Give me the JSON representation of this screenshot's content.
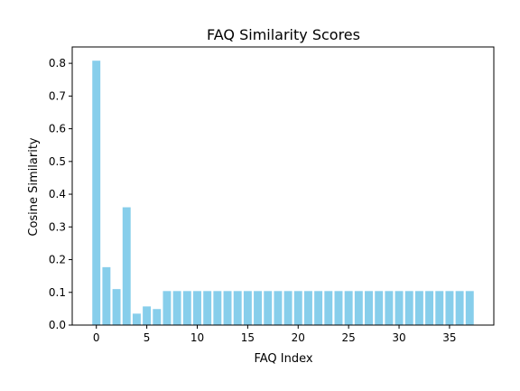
{
  "chart_data": {
    "type": "bar",
    "title": "FAQ Similarity Scores",
    "xlabel": "FAQ Index",
    "ylabel": "Cosine Similarity",
    "x": [
      0,
      1,
      2,
      3,
      4,
      5,
      6,
      7,
      8,
      9,
      10,
      11,
      12,
      13,
      14,
      15,
      16,
      17,
      18,
      19,
      20,
      21,
      22,
      23,
      24,
      25,
      26,
      27,
      28,
      29,
      30,
      31,
      32,
      33,
      34,
      35,
      36,
      37
    ],
    "values": [
      0.808,
      0.177,
      0.11,
      0.36,
      0.035,
      0.057,
      0.049,
      0.104,
      0.104,
      0.104,
      0.104,
      0.104,
      0.104,
      0.104,
      0.104,
      0.104,
      0.104,
      0.104,
      0.104,
      0.104,
      0.104,
      0.104,
      0.104,
      0.104,
      0.104,
      0.104,
      0.104,
      0.104,
      0.104,
      0.104,
      0.104,
      0.104,
      0.104,
      0.104,
      0.104,
      0.104,
      0.104,
      0.104
    ],
    "xlim": [
      -2.39,
      39.39
    ],
    "ylim": [
      0,
      0.85
    ],
    "xticks": [
      0,
      5,
      10,
      15,
      20,
      25,
      30,
      35
    ],
    "yticks": [
      0.0,
      0.1,
      0.2,
      0.3,
      0.4,
      0.5,
      0.6,
      0.7,
      0.8
    ],
    "bar_color": "#87ceeb",
    "grid": false,
    "legend": "none"
  }
}
